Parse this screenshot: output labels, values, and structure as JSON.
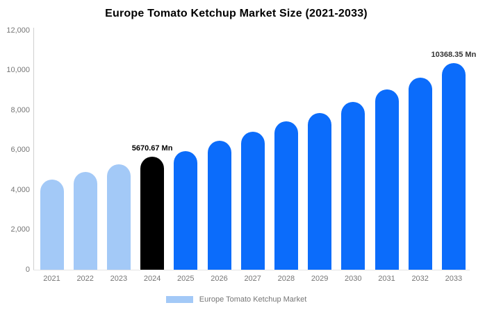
{
  "chart": {
    "title": "Europe Tomato Ketchup Market Size (2021-2033)"
  },
  "legend": {
    "label": "Europe Tomato Ketchup Market",
    "swatch_color": "#a3c9f7"
  },
  "colors": {
    "historical_bar": "#a3c9f7",
    "base_year_bar": "#000000",
    "forecast_bar": "#0b6cfb",
    "axis_text": "#757575",
    "axis_line": "#cfcfcf"
  },
  "chart_data": {
    "type": "bar",
    "title": "Europe Tomato Ketchup Market Size (2021-2033)",
    "categories": [
      "2021",
      "2022",
      "2023",
      "2024",
      "2025",
      "2026",
      "2027",
      "2028",
      "2029",
      "2030",
      "2031",
      "2032",
      "2033"
    ],
    "values": [
      4520,
      4900,
      5280,
      5670.67,
      5950,
      6460,
      6920,
      7440,
      7860,
      8420,
      9040,
      9630,
      10368.35
    ],
    "bar_colors": [
      "#a3c9f7",
      "#a3c9f7",
      "#a3c9f7",
      "#000000",
      "#0b6cfb",
      "#0b6cfb",
      "#0b6cfb",
      "#0b6cfb",
      "#0b6cfb",
      "#0b6cfb",
      "#0b6cfb",
      "#0b6cfb",
      "#0b6cfb"
    ],
    "unit": "Mn",
    "xlabel": "",
    "ylabel": "",
    "ylim": [
      0,
      12000
    ],
    "yticks": [
      0,
      2000,
      4000,
      6000,
      8000,
      10000,
      12000
    ],
    "ytick_labels": [
      "0",
      "2,000",
      "4,000",
      "6,000",
      "8,000",
      "10,000",
      "12,000"
    ],
    "grid": false,
    "legend_position": "bottom",
    "legend_entries": [
      "Europe Tomato Ketchup Market"
    ],
    "annotations": [
      {
        "category": "2024",
        "text": "5670.67 Mn",
        "color": "#000000"
      },
      {
        "category": "2033",
        "text": "10368.35 Mn",
        "color": "#333333"
      }
    ]
  }
}
